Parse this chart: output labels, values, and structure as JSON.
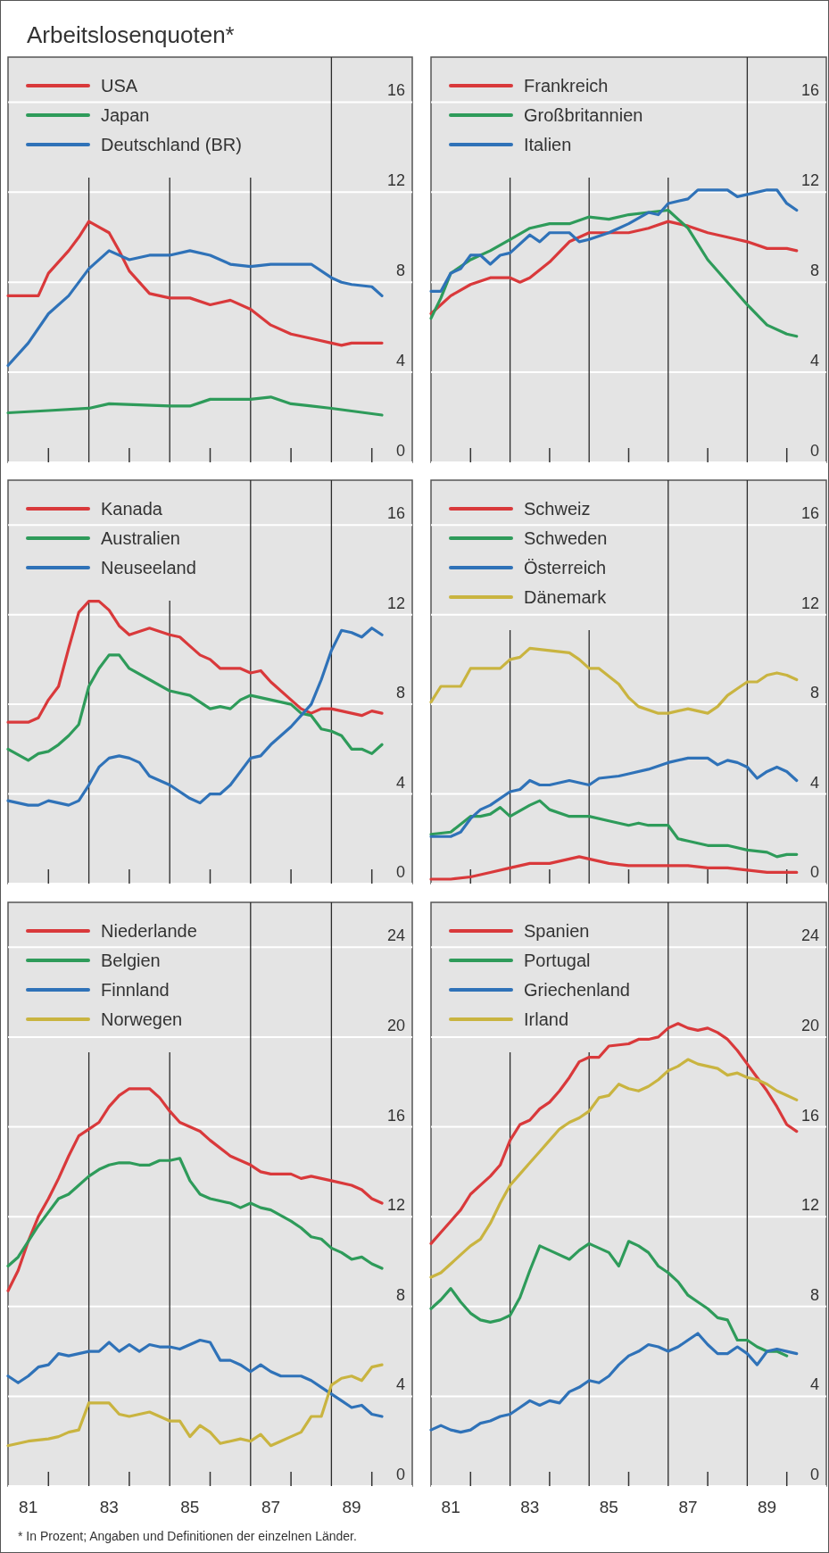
{
  "chart_data": [
    {
      "type": "line",
      "title": "Arbeitslosenquoten*",
      "xlim": [
        80.5,
        90.5
      ],
      "ylim": [
        0,
        18
      ],
      "yticks": [
        0,
        4,
        8,
        12,
        16
      ],
      "xticks": [
        {
          "value": 81.5,
          "label": null
        },
        {
          "value": 83.5,
          "label": null
        },
        {
          "value": 85.5,
          "label": null
        },
        {
          "value": 87.5,
          "label": null
        },
        {
          "value": 89.5,
          "label": null
        }
      ],
      "tick_labels": "y",
      "grid": "y",
      "legend": "top left",
      "ref_lines": [
        {
          "axis": "x",
          "value": 82.5,
          "color": "#2a2a2a"
        },
        {
          "axis": "x",
          "value": 84.5,
          "color": "#2a2a2a"
        },
        {
          "axis": "x",
          "value": 86.5,
          "color": "#2a2a2a"
        },
        {
          "axis": "x",
          "value": 88.5,
          "color": "#2a2a2a"
        }
      ],
      "series": [
        {
          "name": "USA",
          "color": "#d9393b",
          "x": [
            80.5,
            81,
            81.25,
            81.5,
            82,
            82.25,
            82.5,
            83,
            83.25,
            83.5,
            84,
            84.5,
            85,
            85.5,
            86,
            86.5,
            87,
            87.5,
            88,
            88.5,
            88.75,
            89,
            89.75
          ],
          "values": [
            7.4,
            7.4,
            7.4,
            8.4,
            9.4,
            10.0,
            10.7,
            10.2,
            9.4,
            8.5,
            7.5,
            7.3,
            7.3,
            7.0,
            7.2,
            6.8,
            6.1,
            5.7,
            5.5,
            5.3,
            5.2,
            5.3,
            5.3
          ]
        },
        {
          "name": "Japan",
          "color": "#2e9b5a",
          "x": [
            80.5,
            81.5,
            82.5,
            83,
            84.5,
            85,
            85.5,
            86.5,
            87,
            87.5,
            88,
            88.5,
            89.75
          ],
          "values": [
            2.2,
            2.3,
            2.4,
            2.6,
            2.5,
            2.5,
            2.8,
            2.8,
            2.9,
            2.6,
            2.5,
            2.4,
            2.1
          ]
        },
        {
          "name": "Deutschland (BR)",
          "color": "#2f72b8",
          "x": [
            80.5,
            81,
            81.5,
            82,
            82.5,
            83,
            83.5,
            84,
            84.5,
            85,
            85.5,
            86,
            86.5,
            87,
            87.5,
            88,
            88.5,
            88.75,
            89,
            89.5,
            89.75
          ],
          "values": [
            4.3,
            5.3,
            6.6,
            7.4,
            8.6,
            9.4,
            9.0,
            9.2,
            9.2,
            9.4,
            9.2,
            8.8,
            8.7,
            8.8,
            8.8,
            8.8,
            8.2,
            8.0,
            7.9,
            7.8,
            7.4
          ]
        }
      ]
    },
    {
      "type": "line",
      "xlim": [
        80.5,
        90.5
      ],
      "ylim": [
        0,
        18
      ],
      "yticks": [
        0,
        4,
        8,
        12,
        16
      ],
      "xticks": [
        {
          "value": 81.5,
          "label": null
        },
        {
          "value": 83.5,
          "label": null
        },
        {
          "value": 85.5,
          "label": null
        },
        {
          "value": 87.5,
          "label": null
        },
        {
          "value": 89.5,
          "label": null
        }
      ],
      "tick_labels": "y",
      "grid": "y",
      "legend": "top left",
      "ref_lines": [
        {
          "axis": "x",
          "value": 82.5,
          "color": "#2a2a2a"
        },
        {
          "axis": "x",
          "value": 84.5,
          "color": "#2a2a2a"
        },
        {
          "axis": "x",
          "value": 86.5,
          "color": "#2a2a2a"
        },
        {
          "axis": "x",
          "value": 88.5,
          "color": "#2a2a2a"
        }
      ],
      "series": [
        {
          "name": "Frankreich",
          "color": "#d9393b",
          "x": [
            80.5,
            81,
            81.5,
            82,
            82.5,
            82.75,
            83,
            83.5,
            84,
            84.5,
            85,
            85.5,
            86,
            86.5,
            86.75,
            87,
            87.5,
            88,
            88.5,
            89,
            89.5,
            89.75
          ],
          "values": [
            6.6,
            7.4,
            7.9,
            8.2,
            8.2,
            8.0,
            8.2,
            8.9,
            9.8,
            10.2,
            10.2,
            10.2,
            10.4,
            10.7,
            10.6,
            10.5,
            10.2,
            10.0,
            9.8,
            9.5,
            9.5,
            9.4
          ]
        },
        {
          "name": "Großbritannien",
          "color": "#2e9b5a",
          "x": [
            80.5,
            80.75,
            81,
            81.5,
            82,
            82.5,
            83,
            83.5,
            84,
            84.5,
            85,
            85.5,
            86,
            86.5,
            87,
            87.5,
            88,
            88.5,
            89,
            89.5,
            89.75
          ],
          "values": [
            6.4,
            7.3,
            8.4,
            9.0,
            9.4,
            9.9,
            10.4,
            10.6,
            10.6,
            10.9,
            10.8,
            11.0,
            11.1,
            11.2,
            10.4,
            9.0,
            8.0,
            7.0,
            6.1,
            5.7,
            5.6
          ]
        },
        {
          "name": "Italien",
          "color": "#2f72b8",
          "x": [
            80.5,
            80.75,
            81,
            81.25,
            81.5,
            81.75,
            82,
            82.25,
            82.5,
            83,
            83.25,
            83.5,
            84,
            84.25,
            84.5,
            85,
            85.5,
            86,
            86.25,
            86.5,
            87,
            87.25,
            87.5,
            88,
            88.25,
            88.5,
            89,
            89.25,
            89.5,
            89.75
          ],
          "values": [
            7.6,
            7.6,
            8.4,
            8.6,
            9.2,
            9.2,
            8.8,
            9.2,
            9.3,
            10.1,
            9.8,
            10.2,
            10.2,
            9.8,
            9.9,
            10.2,
            10.6,
            11.1,
            11.0,
            11.5,
            11.7,
            12.1,
            12.1,
            12.1,
            11.8,
            11.9,
            12.1,
            12.1,
            11.5,
            11.2
          ]
        }
      ]
    },
    {
      "type": "line",
      "xlim": [
        80.5,
        90.5
      ],
      "ylim": [
        0,
        18
      ],
      "yticks": [
        0,
        4,
        8,
        12,
        16
      ],
      "xticks": [
        {
          "value": 81.5,
          "label": null
        },
        {
          "value": 83.5,
          "label": null
        },
        {
          "value": 85.5,
          "label": null
        },
        {
          "value": 87.5,
          "label": null
        },
        {
          "value": 89.5,
          "label": null
        }
      ],
      "tick_labels": "y",
      "grid": "y",
      "legend": "top left",
      "ref_lines": [
        {
          "axis": "x",
          "value": 82.5,
          "color": "#2a2a2a"
        },
        {
          "axis": "x",
          "value": 84.5,
          "color": "#2a2a2a"
        },
        {
          "axis": "x",
          "value": 86.5,
          "color": "#2a2a2a"
        },
        {
          "axis": "x",
          "value": 88.5,
          "color": "#2a2a2a"
        }
      ],
      "series": [
        {
          "name": "Kanada",
          "color": "#d9393b",
          "x": [
            80.5,
            81,
            81.25,
            81.5,
            81.75,
            82,
            82.25,
            82.5,
            82.75,
            83,
            83.25,
            83.5,
            84,
            84.5,
            84.75,
            85,
            85.25,
            85.5,
            85.75,
            86,
            86.25,
            86.5,
            86.75,
            87,
            87.5,
            87.75,
            88,
            88.25,
            88.5,
            89,
            89.25,
            89.5,
            89.75
          ],
          "values": [
            7.2,
            7.2,
            7.4,
            8.2,
            8.8,
            10.5,
            12.1,
            12.6,
            12.6,
            12.2,
            11.5,
            11.1,
            11.4,
            11.1,
            11.0,
            10.6,
            10.2,
            10.0,
            9.6,
            9.6,
            9.6,
            9.4,
            9.5,
            9.0,
            8.2,
            7.8,
            7.6,
            7.8,
            7.8,
            7.6,
            7.5,
            7.7,
            7.6
          ]
        },
        {
          "name": "Australien",
          "color": "#2e9b5a",
          "x": [
            80.5,
            81,
            81.25,
            81.5,
            81.75,
            82,
            82.25,
            82.5,
            82.75,
            83,
            83.25,
            83.5,
            84,
            84.5,
            85,
            85.5,
            85.75,
            86,
            86.25,
            86.5,
            87,
            87.5,
            87.75,
            88,
            88.25,
            88.5,
            88.75,
            89,
            89.25,
            89.5,
            89.75
          ],
          "values": [
            6.0,
            5.5,
            5.8,
            5.9,
            6.2,
            6.6,
            7.1,
            8.8,
            9.6,
            10.2,
            10.2,
            9.6,
            9.1,
            8.6,
            8.4,
            7.8,
            7.9,
            7.8,
            8.2,
            8.4,
            8.2,
            8.0,
            7.6,
            7.5,
            6.9,
            6.8,
            6.6,
            6.0,
            6.0,
            5.8,
            6.2
          ]
        },
        {
          "name": "Neuseeland",
          "color": "#2f72b8",
          "x": [
            80.5,
            81,
            81.25,
            81.5,
            82,
            82.25,
            82.5,
            82.75,
            83,
            83.25,
            83.5,
            83.75,
            84,
            84.5,
            85,
            85.25,
            85.5,
            85.75,
            86,
            86.5,
            86.75,
            87,
            87.5,
            88,
            88.25,
            88.5,
            88.75,
            89,
            89.25,
            89.5,
            89.75
          ],
          "values": [
            3.7,
            3.5,
            3.5,
            3.7,
            3.5,
            3.7,
            4.4,
            5.2,
            5.6,
            5.7,
            5.6,
            5.4,
            4.8,
            4.4,
            3.8,
            3.6,
            4.0,
            4.0,
            4.4,
            5.6,
            5.7,
            6.2,
            7.0,
            8.0,
            9.1,
            10.4,
            11.3,
            11.2,
            11.0,
            11.4,
            11.1
          ]
        }
      ]
    },
    {
      "type": "line",
      "xlim": [
        80.5,
        90.5
      ],
      "ylim": [
        0,
        18
      ],
      "yticks": [
        0,
        4,
        8,
        12,
        16
      ],
      "xticks": [
        {
          "value": 81.5,
          "label": null
        },
        {
          "value": 83.5,
          "label": null
        },
        {
          "value": 85.5,
          "label": null
        },
        {
          "value": 87.5,
          "label": null
        },
        {
          "value": 89.5,
          "label": null
        }
      ],
      "tick_labels": "y",
      "grid": "y",
      "legend": "top left",
      "ref_lines": [
        {
          "axis": "x",
          "value": 82.5,
          "color": "#2a2a2a"
        },
        {
          "axis": "x",
          "value": 84.5,
          "color": "#2a2a2a"
        },
        {
          "axis": "x",
          "value": 86.5,
          "color": "#2a2a2a"
        },
        {
          "axis": "x",
          "value": 88.5,
          "color": "#2a2a2a"
        }
      ],
      "series": [
        {
          "name": "Schweiz",
          "color": "#d9393b",
          "x": [
            80.5,
            81,
            81.5,
            82,
            82.5,
            83,
            83.5,
            84,
            84.25,
            84.5,
            85,
            85.5,
            86,
            86.5,
            87,
            87.5,
            88,
            88.5,
            89,
            89.5,
            89.75
          ],
          "values": [
            0.2,
            0.2,
            0.3,
            0.5,
            0.7,
            0.9,
            0.9,
            1.1,
            1.2,
            1.1,
            0.9,
            0.8,
            0.8,
            0.8,
            0.8,
            0.7,
            0.7,
            0.6,
            0.5,
            0.5,
            0.5
          ]
        },
        {
          "name": "Schweden",
          "color": "#2e9b5a",
          "x": [
            80.5,
            81,
            81.5,
            81.75,
            82,
            82.25,
            82.5,
            83,
            83.25,
            83.5,
            84,
            84.5,
            85,
            85.5,
            85.75,
            86,
            86.5,
            86.75,
            87,
            87.5,
            88,
            88.5,
            89,
            89.25,
            89.5,
            89.75
          ],
          "values": [
            2.2,
            2.3,
            3.0,
            3.0,
            3.1,
            3.4,
            3.0,
            3.5,
            3.7,
            3.3,
            3.0,
            3.0,
            2.8,
            2.6,
            2.7,
            2.6,
            2.6,
            2.0,
            1.9,
            1.7,
            1.7,
            1.5,
            1.4,
            1.2,
            1.3,
            1.3
          ]
        },
        {
          "name": "Österreich",
          "color": "#2f72b8",
          "x": [
            80.5,
            81,
            81.25,
            81.5,
            81.75,
            82,
            82.5,
            82.75,
            83,
            83.25,
            83.5,
            84,
            84.5,
            84.75,
            85.25,
            85.5,
            86,
            86.5,
            87,
            87.5,
            87.75,
            88,
            88.25,
            88.5,
            88.75,
            89,
            89.25,
            89.5,
            89.75
          ],
          "values": [
            2.1,
            2.1,
            2.3,
            2.9,
            3.3,
            3.5,
            4.1,
            4.2,
            4.6,
            4.4,
            4.4,
            4.6,
            4.4,
            4.7,
            4.8,
            4.9,
            5.1,
            5.4,
            5.6,
            5.6,
            5.3,
            5.5,
            5.4,
            5.2,
            4.7,
            5.0,
            5.2,
            5.0,
            4.6
          ]
        },
        {
          "name": "Dänemark",
          "color": "#c9b440",
          "x": [
            80.5,
            80.75,
            81.25,
            81.5,
            81.75,
            82.25,
            82.5,
            82.75,
            83,
            83.5,
            84,
            84.25,
            84.5,
            84.75,
            85.25,
            85.5,
            85.75,
            86.25,
            86.5,
            87,
            87.5,
            87.75,
            88,
            88.25,
            88.5,
            88.75,
            89,
            89.25,
            89.5,
            89.75
          ],
          "values": [
            8.1,
            8.8,
            8.8,
            9.6,
            9.6,
            9.6,
            10.0,
            10.1,
            10.5,
            10.4,
            10.3,
            10.0,
            9.6,
            9.6,
            8.9,
            8.3,
            7.9,
            7.6,
            7.6,
            7.8,
            7.6,
            7.9,
            8.4,
            8.7,
            9.0,
            9.0,
            9.3,
            9.4,
            9.3,
            9.1
          ]
        }
      ]
    },
    {
      "type": "line",
      "xlim": [
        80.5,
        90.5
      ],
      "ylim": [
        0,
        26
      ],
      "yticks": [
        0,
        4,
        8,
        12,
        16,
        20,
        24
      ],
      "xticks": [
        81,
        {
          "value": 81.5,
          "label": null
        },
        83,
        {
          "value": 83.5,
          "label": null
        },
        85,
        {
          "value": 85.5,
          "label": null
        },
        87,
        {
          "value": 87.5,
          "label": null
        },
        89,
        {
          "value": 89.5,
          "label": null
        }
      ],
      "grid": "y",
      "legend": "top left",
      "annotations": [
        "* In Prozent; Angaben und Definitionen der einzelnen Länder."
      ],
      "ref_lines": [
        {
          "axis": "x",
          "value": 82.5,
          "color": "#2a2a2a"
        },
        {
          "axis": "x",
          "value": 84.5,
          "color": "#2a2a2a"
        },
        {
          "axis": "x",
          "value": 86.5,
          "color": "#2a2a2a"
        },
        {
          "axis": "x",
          "value": 88.5,
          "color": "#2a2a2a"
        }
      ],
      "series": [
        {
          "name": "Niederlande",
          "color": "#d9393b",
          "x": [
            80.5,
            80.75,
            81,
            81.25,
            81.5,
            81.75,
            82,
            82.25,
            82.5,
            82.75,
            83,
            83.25,
            83.5,
            84,
            84.25,
            84.5,
            84.75,
            85,
            85.25,
            85.5,
            86,
            86.5,
            86.75,
            87,
            87.5,
            87.75,
            88,
            88.5,
            89,
            89.25,
            89.5,
            89.75
          ],
          "values": [
            8.7,
            9.6,
            10.9,
            12.0,
            12.8,
            13.7,
            14.7,
            15.6,
            15.9,
            16.2,
            16.9,
            17.4,
            17.7,
            17.7,
            17.3,
            16.7,
            16.2,
            16.0,
            15.8,
            15.4,
            14.7,
            14.3,
            14.0,
            13.9,
            13.9,
            13.7,
            13.8,
            13.6,
            13.4,
            13.2,
            12.8,
            12.6
          ]
        },
        {
          "name": "Belgien",
          "color": "#2e9b5a",
          "x": [
            80.5,
            80.75,
            81,
            81.25,
            81.5,
            81.75,
            82,
            82.25,
            82.5,
            82.75,
            83,
            83.25,
            83.5,
            83.75,
            84,
            84.25,
            84.5,
            84.75,
            85,
            85.25,
            85.5,
            86,
            86.25,
            86.5,
            86.75,
            87,
            87.5,
            87.75,
            88,
            88.25,
            88.5,
            88.75,
            89,
            89.25,
            89.5,
            89.75
          ],
          "values": [
            9.8,
            10.2,
            10.9,
            11.6,
            12.2,
            12.8,
            13.0,
            13.4,
            13.8,
            14.1,
            14.3,
            14.4,
            14.4,
            14.3,
            14.3,
            14.5,
            14.5,
            14.6,
            13.6,
            13.0,
            12.8,
            12.6,
            12.4,
            12.6,
            12.4,
            12.3,
            11.8,
            11.5,
            11.1,
            11.0,
            10.6,
            10.4,
            10.1,
            10.2,
            9.9,
            9.7
          ]
        },
        {
          "name": "Finnland",
          "color": "#2f72b8",
          "x": [
            80.5,
            80.75,
            81,
            81.25,
            81.5,
            81.75,
            82,
            82.25,
            82.5,
            82.75,
            83,
            83.25,
            83.5,
            83.75,
            84,
            84.25,
            84.5,
            84.75,
            85,
            85.25,
            85.5,
            85.75,
            86,
            86.25,
            86.5,
            86.75,
            87,
            87.25,
            87.5,
            87.75,
            88,
            88.25,
            88.5,
            88.75,
            89,
            89.25,
            89.5,
            89.75
          ],
          "values": [
            4.9,
            4.6,
            4.9,
            5.3,
            5.4,
            5.9,
            5.8,
            5.9,
            6.0,
            6.0,
            6.4,
            6.0,
            6.3,
            6.0,
            6.3,
            6.2,
            6.2,
            6.1,
            6.3,
            6.5,
            6.4,
            5.6,
            5.6,
            5.4,
            5.1,
            5.4,
            5.1,
            4.9,
            4.9,
            4.9,
            4.7,
            4.4,
            4.1,
            3.8,
            3.5,
            3.6,
            3.2,
            3.1
          ]
        },
        {
          "name": "Norwegen",
          "color": "#c9b440",
          "x": [
            80.5,
            81,
            81.5,
            81.75,
            82,
            82.25,
            82.5,
            82.75,
            83,
            83.25,
            83.5,
            84,
            84.25,
            84.5,
            84.75,
            85,
            85.25,
            85.5,
            85.75,
            86,
            86.25,
            86.5,
            86.75,
            87,
            87.25,
            87.5,
            87.75,
            88,
            88.25,
            88.5,
            88.75,
            89,
            89.25,
            89.5,
            89.75
          ],
          "values": [
            1.8,
            2.0,
            2.1,
            2.2,
            2.4,
            2.5,
            3.7,
            3.7,
            3.7,
            3.2,
            3.1,
            3.3,
            3.1,
            2.9,
            2.9,
            2.2,
            2.7,
            2.4,
            1.9,
            2.0,
            2.1,
            2.0,
            2.3,
            1.8,
            2.0,
            2.2,
            2.4,
            3.1,
            3.1,
            4.5,
            4.8,
            4.9,
            4.7,
            5.3,
            5.4
          ]
        }
      ]
    },
    {
      "type": "line",
      "xlim": [
        80.5,
        90.5
      ],
      "ylim": [
        0,
        26
      ],
      "yticks": [
        0,
        4,
        8,
        12,
        16,
        20,
        24
      ],
      "xticks": [
        81,
        {
          "value": 81.5,
          "label": null
        },
        83,
        {
          "value": 83.5,
          "label": null
        },
        85,
        {
          "value": 85.5,
          "label": null
        },
        87,
        {
          "value": 87.5,
          "label": null
        },
        89,
        {
          "value": 89.5,
          "label": null
        }
      ],
      "grid": "y",
      "legend": "top left",
      "ref_lines": [
        {
          "axis": "x",
          "value": 82.5,
          "color": "#2a2a2a"
        },
        {
          "axis": "x",
          "value": 84.5,
          "color": "#2a2a2a"
        },
        {
          "axis": "x",
          "value": 86.5,
          "color": "#2a2a2a"
        },
        {
          "axis": "x",
          "value": 88.5,
          "color": "#2a2a2a"
        }
      ],
      "series": [
        {
          "name": "Spanien",
          "color": "#d9393b",
          "x": [
            80.5,
            80.75,
            81,
            81.25,
            81.5,
            81.75,
            82,
            82.25,
            82.5,
            82.75,
            83,
            83.25,
            83.5,
            83.75,
            84,
            84.25,
            84.5,
            84.75,
            85,
            85.5,
            85.75,
            86,
            86.25,
            86.5,
            86.75,
            87,
            87.25,
            87.5,
            87.75,
            88,
            88.25,
            88.5,
            88.75,
            89,
            89.25,
            89.5,
            89.75
          ],
          "values": [
            10.8,
            11.3,
            11.8,
            12.3,
            13.0,
            13.4,
            13.8,
            14.3,
            15.4,
            16.1,
            16.3,
            16.8,
            17.1,
            17.6,
            18.2,
            18.9,
            19.1,
            19.1,
            19.6,
            19.7,
            19.9,
            19.9,
            20.0,
            20.4,
            20.6,
            20.4,
            20.3,
            20.4,
            20.2,
            19.9,
            19.4,
            18.8,
            18.2,
            17.6,
            16.9,
            16.1,
            15.8
          ]
        },
        {
          "name": "Portugal",
          "color": "#2e9b5a",
          "x": [
            80.5,
            80.75,
            81,
            81.25,
            81.5,
            81.75,
            82,
            82.25,
            82.5,
            82.75,
            83,
            83.25,
            83.5,
            84,
            84.25,
            84.5,
            84.75,
            85,
            85.25,
            85.5,
            85.75,
            86,
            86.25,
            86.5,
            86.75,
            87,
            87.25,
            87.5,
            87.75,
            88,
            88.25,
            88.5,
            88.75,
            89,
            89.25,
            89.5
          ],
          "values": [
            7.9,
            8.3,
            8.8,
            8.2,
            7.7,
            7.4,
            7.3,
            7.4,
            7.6,
            8.4,
            9.6,
            10.7,
            10.5,
            10.1,
            10.5,
            10.8,
            10.6,
            10.4,
            9.8,
            10.9,
            10.7,
            10.4,
            9.8,
            9.5,
            9.1,
            8.5,
            8.2,
            7.9,
            7.5,
            7.4,
            6.5,
            6.5,
            6.2,
            6.0,
            6.0,
            5.8
          ]
        },
        {
          "name": "Griechenland",
          "color": "#2f72b8",
          "x": [
            80.5,
            80.75,
            81,
            81.25,
            81.5,
            81.75,
            82,
            82.25,
            82.5,
            82.75,
            83,
            83.25,
            83.5,
            83.75,
            84,
            84.25,
            84.5,
            84.75,
            85,
            85.25,
            85.5,
            85.75,
            86,
            86.25,
            86.5,
            86.75,
            87,
            87.25,
            87.5,
            87.75,
            88,
            88.25,
            88.5,
            88.75,
            89,
            89.25,
            89.5,
            89.75
          ],
          "values": [
            2.5,
            2.7,
            2.5,
            2.4,
            2.5,
            2.8,
            2.9,
            3.1,
            3.2,
            3.5,
            3.8,
            3.6,
            3.8,
            3.7,
            4.2,
            4.4,
            4.7,
            4.6,
            4.9,
            5.4,
            5.8,
            6.0,
            6.3,
            6.2,
            6.0,
            6.2,
            6.5,
            6.8,
            6.3,
            5.9,
            5.9,
            6.2,
            5.9,
            5.4,
            6.0,
            6.1,
            6.0,
            5.9
          ]
        },
        {
          "name": "Irland",
          "color": "#c9b440",
          "x": [
            80.5,
            80.75,
            81,
            81.25,
            81.5,
            81.75,
            82,
            82.25,
            82.5,
            82.75,
            83,
            83.25,
            83.5,
            83.75,
            84,
            84.25,
            84.5,
            84.75,
            85,
            85.25,
            85.5,
            85.75,
            86,
            86.25,
            86.5,
            86.75,
            87,
            87.25,
            87.5,
            87.75,
            88,
            88.25,
            88.5,
            88.75,
            89,
            89.25,
            89.5,
            89.75
          ],
          "values": [
            9.3,
            9.5,
            9.9,
            10.3,
            10.7,
            11.0,
            11.7,
            12.6,
            13.4,
            13.9,
            14.4,
            14.9,
            15.4,
            15.9,
            16.2,
            16.4,
            16.7,
            17.3,
            17.4,
            17.9,
            17.7,
            17.6,
            17.8,
            18.1,
            18.5,
            18.7,
            19.0,
            18.8,
            18.7,
            18.6,
            18.3,
            18.4,
            18.2,
            18.1,
            17.9,
            17.6,
            17.4,
            17.2
          ]
        }
      ]
    }
  ]
}
